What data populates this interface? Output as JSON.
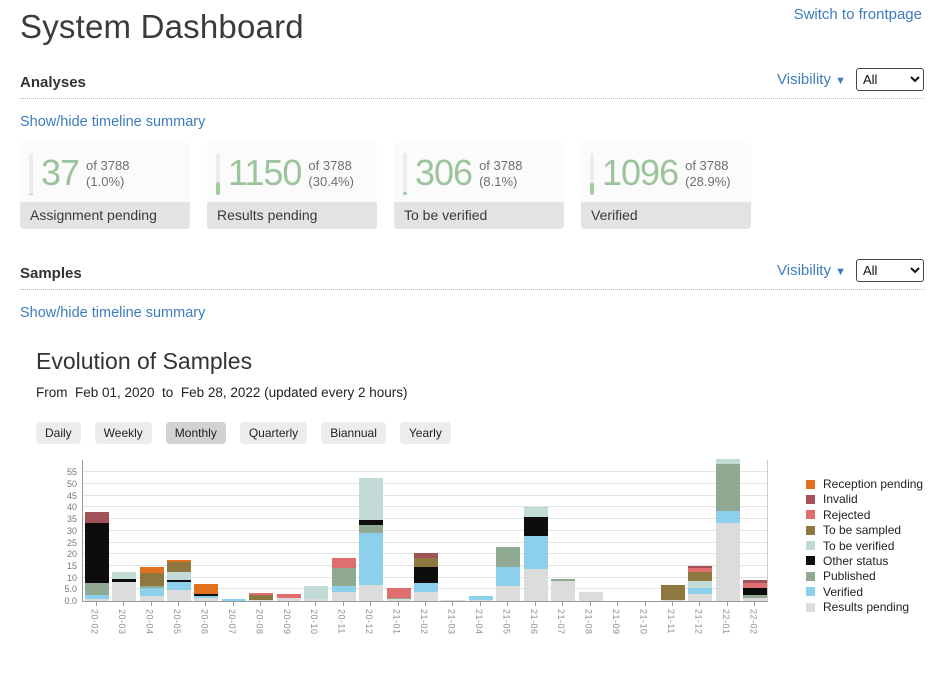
{
  "header": {
    "title": "System Dashboard",
    "switch_link": "Switch to frontpage"
  },
  "analyses": {
    "heading": "Analyses",
    "visibility_label": "Visibility",
    "visibility_caret": "▼",
    "visibility_value": "All",
    "timeline_link": "Show/hide timeline summary",
    "cards": [
      {
        "count": "37",
        "of": "of 3788",
        "pct": "(1.0%)",
        "pct_value": 1.0,
        "label": "Assignment pending"
      },
      {
        "count": "1150",
        "of": "of 3788",
        "pct": "(30.4%)",
        "pct_value": 30.4,
        "label": "Results pending"
      },
      {
        "count": "306",
        "of": "of 3788",
        "pct": "(8.1%)",
        "pct_value": 8.1,
        "label": "To be verified"
      },
      {
        "count": "1096",
        "of": "of 3788",
        "pct": "(28.9%)",
        "pct_value": 28.9,
        "label": "Verified"
      }
    ]
  },
  "samples": {
    "heading": "Samples",
    "visibility_label": "Visibility",
    "visibility_caret": "▼",
    "visibility_value": "All",
    "timeline_link": "Show/hide timeline summary"
  },
  "chart": {
    "title": "Evolution of Samples",
    "subtitle": "From  Feb 01, 2020  to  Feb 28, 2022 (updated every 2 hours)",
    "tabs": [
      {
        "label": "Daily",
        "active": false
      },
      {
        "label": "Weekly",
        "active": false
      },
      {
        "label": "Monthly",
        "active": true
      },
      {
        "label": "Quarterly",
        "active": false
      },
      {
        "label": "Biannual",
        "active": false
      },
      {
        "label": "Yearly",
        "active": false
      }
    ]
  },
  "chart_data": {
    "type": "bar",
    "stacked": true,
    "stack_order": "reverse-legend (Results pending at bottom, Reception pending on top)",
    "legend_position": "right",
    "grid": true,
    "ylim": [
      0,
      55
    ],
    "ytick_values": [
      0,
      5,
      10,
      15,
      20,
      25,
      30,
      35,
      40,
      45,
      50,
      55
    ],
    "ytick_labels": [
      "0.0",
      "5.0",
      "10",
      "15",
      "20",
      "25",
      "30",
      "35",
      "40",
      "45",
      "50",
      "55"
    ],
    "categories": [
      "20-02",
      "20-03",
      "20-04",
      "20-05",
      "20-06",
      "20-07",
      "20-08",
      "20-09",
      "20-10",
      "20-11",
      "20-12",
      "21-01",
      "21-02",
      "21-03",
      "21-04",
      "21-05",
      "21-06",
      "21-07",
      "21-08",
      "21-09",
      "21-10",
      "21-11",
      "21-12",
      "22-01",
      "22-02"
    ],
    "series": [
      {
        "name": "Reception pending",
        "color": "#e2711d",
        "values": [
          0,
          0,
          2.5,
          1,
          4.5,
          0,
          0,
          0,
          0,
          0,
          0,
          0,
          0,
          0,
          0,
          0,
          0,
          0,
          0,
          0,
          0,
          0,
          0,
          0,
          0
        ]
      },
      {
        "name": "Invalid",
        "color": "#a35257",
        "values": [
          4.5,
          0,
          0,
          0,
          0,
          0,
          0,
          0,
          0,
          0,
          0,
          0,
          2,
          0,
          0,
          0,
          0,
          0,
          0,
          0,
          0,
          0,
          1,
          0,
          1.5
        ]
      },
      {
        "name": "Rejected",
        "color": "#df6e6e",
        "values": [
          0,
          0,
          0,
          0,
          0,
          0,
          1,
          1.5,
          0,
          4.5,
          0,
          4,
          0,
          0,
          0,
          0,
          0,
          0,
          0,
          0,
          0,
          0,
          1.5,
          0,
          2
        ]
      },
      {
        "name": "To be sampled",
        "color": "#8e7840",
        "values": [
          0,
          0,
          5.5,
          4,
          0,
          0,
          2,
          0,
          0,
          0,
          0,
          0,
          4,
          0,
          0,
          0,
          0,
          0,
          0,
          0,
          0,
          6.5,
          4,
          0,
          0
        ]
      },
      {
        "name": "To be verified",
        "color": "#c2dbd6",
        "values": [
          0,
          3,
          0,
          3.5,
          0,
          0,
          0,
          0,
          5.5,
          0,
          18,
          0,
          0,
          0,
          0,
          0,
          4,
          0,
          0,
          0,
          0,
          0,
          3,
          2,
          0
        ]
      },
      {
        "name": "Other status",
        "color": "#0d0d0d",
        "values": [
          26,
          1.5,
          0,
          1,
          1,
          0,
          0,
          0,
          0,
          0,
          2,
          0,
          7,
          0,
          0,
          0,
          8,
          0,
          0,
          0,
          0,
          0,
          0,
          0,
          3
        ]
      },
      {
        "name": "Published",
        "color": "#8fa993",
        "values": [
          5,
          0,
          1,
          0,
          0,
          0,
          0,
          0,
          0,
          7.5,
          3.5,
          0.5,
          0,
          0,
          0,
          8.5,
          0,
          1,
          0,
          0,
          0,
          0,
          0,
          20,
          1
        ]
      },
      {
        "name": "Verified",
        "color": "#8dd0eb",
        "values": [
          1.5,
          0,
          3.5,
          3.5,
          0.5,
          1,
          0,
          0,
          0,
          2.5,
          22,
          0,
          3.5,
          0,
          1.5,
          8,
          14.5,
          0,
          0,
          0,
          0,
          0,
          2.5,
          5,
          0
        ]
      },
      {
        "name": "Results pending",
        "color": "#dcdcdc",
        "values": [
          1,
          8,
          2,
          4.5,
          1.5,
          0,
          0.5,
          1.5,
          1,
          4,
          7,
          1,
          4,
          0.5,
          0.5,
          6.5,
          13.5,
          8.5,
          4,
          0,
          0,
          0.5,
          3,
          33.5,
          1.5
        ]
      }
    ]
  }
}
